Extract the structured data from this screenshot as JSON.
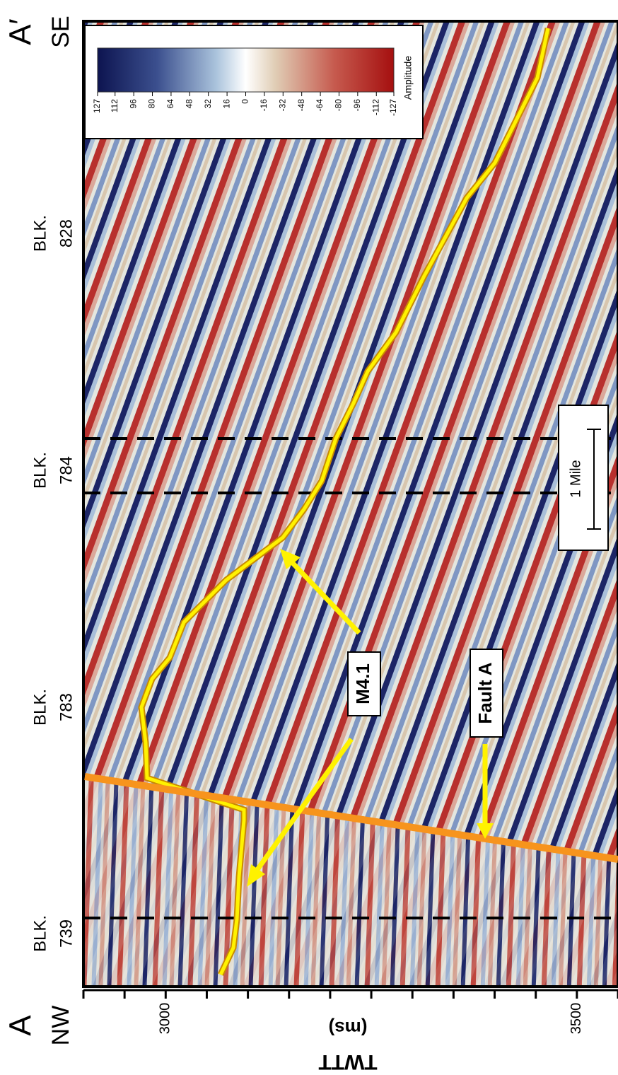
{
  "header": {
    "start": {
      "letter": "A",
      "direction": "NW"
    },
    "end": {
      "letter": "A′",
      "direction": "SE"
    }
  },
  "blocks": [
    {
      "label": "BLK.",
      "number": "739"
    },
    {
      "label": "BLK.",
      "number": "783"
    },
    {
      "label": "BLK.",
      "number": "784"
    },
    {
      "label": "BLK.",
      "number": "828"
    }
  ],
  "colorbar": {
    "title": "Amplitude",
    "ticks": [
      127,
      112,
      96,
      80,
      64,
      48,
      32,
      16,
      0,
      -16,
      -32,
      -48,
      -64,
      -80,
      -96,
      -112,
      -127
    ]
  },
  "time_axis": {
    "title": "TWTT",
    "unit": "(ms)",
    "lim": [
      2900,
      3550
    ],
    "ticks": [
      2900,
      2950,
      3000,
      3050,
      3100,
      3150,
      3200,
      3250,
      3300,
      3350,
      3400,
      3450,
      3500,
      3550
    ],
    "labeled": [
      false,
      false,
      true,
      false,
      false,
      false,
      false,
      false,
      false,
      false,
      false,
      false,
      true,
      false
    ]
  },
  "scale_bar": {
    "label": "1 Mile"
  },
  "annotations": {
    "horizon": "M4.1",
    "fault": "Fault A"
  }
}
